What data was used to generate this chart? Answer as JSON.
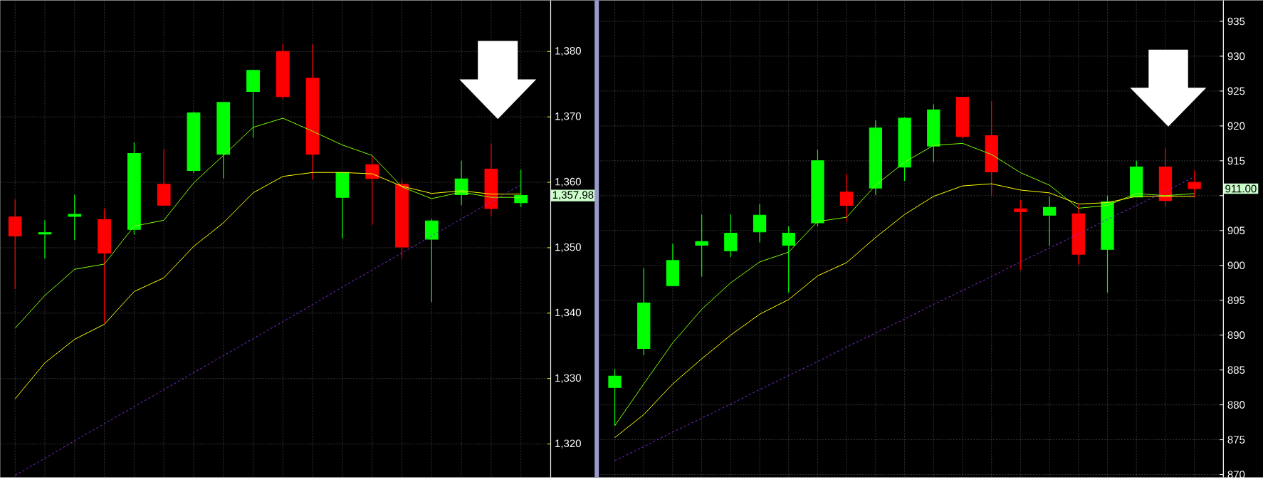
{
  "chart_data": [
    {
      "type": "candlestick",
      "categories": [
        null,
        null,
        null,
        null,
        null,
        null,
        null,
        null,
        null,
        null,
        null,
        null,
        null,
        null,
        null,
        null,
        null,
        null
      ],
      "ohlc": [
        [
          1354.7,
          1357.4,
          1343.7,
          1351.8
        ],
        [
          1352.1,
          1354.2,
          1348.3,
          1352.3
        ],
        [
          1354.8,
          1358.1,
          1351.2,
          1355.1
        ],
        [
          1354.3,
          1356.0,
          1338.5,
          1349.2
        ],
        [
          1352.8,
          1366.1,
          1352.0,
          1364.4
        ],
        [
          1359.7,
          1365.0,
          1356.5,
          1356.5
        ],
        [
          1361.8,
          1370.8,
          1361.4,
          1370.6
        ],
        [
          1364.3,
          1372.2,
          1360.6,
          1372.2
        ],
        [
          1373.9,
          1377.2,
          1366.8,
          1377.1
        ],
        [
          1380.0,
          1381.2,
          1372.7,
          1373.1
        ],
        [
          1375.9,
          1381.1,
          1360.4,
          1364.3
        ],
        [
          1357.7,
          1361.5,
          1351.4,
          1361.5
        ],
        [
          1362.7,
          1364.0,
          1353.5,
          1360.6
        ],
        [
          1359.7,
          1360.5,
          1348.3,
          1350.1
        ],
        [
          1351.3,
          1354.4,
          1341.7,
          1354.1
        ],
        [
          1358.1,
          1363.3,
          1356.5,
          1360.5
        ],
        [
          1362.0,
          1365.9,
          1354.8,
          1356.0
        ],
        [
          1356.9,
          1361.9,
          1356.2,
          1357.98
        ]
      ],
      "colors": [
        "#ff0000",
        "#00ff00",
        "#00ff00",
        "#ff0000",
        "#00ff00",
        "#ff0000",
        "#00ff00",
        "#00ff00",
        "#00ff00",
        "#ff0000",
        "#ff0000",
        "#00ff00",
        "#ff0000",
        "#ff0000",
        "#00ff00",
        "#00ff00",
        "#ff0000",
        "#00ff00"
      ],
      "series": [
        {
          "type": "line",
          "color": "#80ff00",
          "values": [
            1337.7,
            1342.7,
            1346.7,
            1347.5,
            1353.3,
            1354.2,
            1359.9,
            1364.1,
            1368.4,
            1369.8,
            1367.8,
            1365.7,
            1364.1,
            1359.3,
            1357.5,
            1358.5,
            1357.7,
            1357.7
          ]
        },
        {
          "type": "line",
          "color": "#ffff00",
          "values": [
            1326.9,
            1332.4,
            1336.0,
            1338.3,
            1343.3,
            1345.4,
            1350.2,
            1353.8,
            1358.4,
            1360.9,
            1361.5,
            1361.5,
            1361.3,
            1359.4,
            1358.3,
            1358.7,
            1358.2,
            1358.2
          ]
        },
        {
          "type": "line",
          "color": "#8a2be2",
          "line_style": "dashed",
          "values": [
            1315.2,
            1317.8,
            1320.5,
            1323.1,
            1325.7,
            1328.3,
            1330.9,
            1333.5,
            1336.1,
            1338.7,
            1341.3,
            1344.0,
            1346.6,
            1349.2,
            1351.8,
            1354.4,
            1357.0,
            1359.6
          ]
        }
      ],
      "ylim": [
        1314.9,
        1387.8
      ],
      "yticks": [
        {
          "value": 1320,
          "label": "1,320"
        },
        {
          "value": 1330,
          "label": "1,330"
        },
        {
          "value": 1340,
          "label": "1,340"
        },
        {
          "value": 1350,
          "label": "1,350"
        },
        {
          "value": 1360,
          "label": "1,360"
        },
        {
          "value": 1370,
          "label": "1,370"
        },
        {
          "value": 1380,
          "label": "1,380"
        }
      ],
      "grid": true,
      "tick_labels": "y",
      "annotations": [
        "1,357.98"
      ]
    },
    {
      "type": "candlestick",
      "categories": [
        null,
        null,
        null,
        null,
        null,
        null,
        null,
        null,
        null,
        null,
        null,
        null,
        null,
        null,
        null,
        null,
        null,
        null,
        null,
        null,
        null
      ],
      "ohlc": [
        [
          882.5,
          885.1,
          877.0,
          884.1
        ],
        [
          888.1,
          899.6,
          887.1,
          894.6
        ],
        [
          897.1,
          903.1,
          897.1,
          900.7
        ],
        [
          902.9,
          907.3,
          898.4,
          903.4
        ],
        [
          902.1,
          907.3,
          901.2,
          904.6
        ],
        [
          904.8,
          908.8,
          903.3,
          907.2
        ],
        [
          902.9,
          905.6,
          896.1,
          904.6
        ],
        [
          906.1,
          916.6,
          905.6,
          915.0
        ],
        [
          910.5,
          913.1,
          906.3,
          908.6
        ],
        [
          911.1,
          920.8,
          910.1,
          919.7
        ],
        [
          914.1,
          921.3,
          912.1,
          921.1
        ],
        [
          917.1,
          923.1,
          914.8,
          922.3
        ],
        [
          924.1,
          924.1,
          918.2,
          918.5
        ],
        [
          918.6,
          923.5,
          910.0,
          913.4
        ],
        [
          908.1,
          909.4,
          899.3,
          907.7
        ],
        [
          907.2,
          909.9,
          902.8,
          908.3
        ],
        [
          907.4,
          908.7,
          900.1,
          901.6
        ],
        [
          902.3,
          910.0,
          896.1,
          909.1
        ],
        [
          909.8,
          915.0,
          909.8,
          914.1
        ],
        [
          914.1,
          916.8,
          908.4,
          909.3
        ],
        [
          911.9,
          913.6,
          909.7,
          911.0
        ]
      ],
      "colors": [
        "#00ff00",
        "#00ff00",
        "#00ff00",
        "#00ff00",
        "#00ff00",
        "#00ff00",
        "#00ff00",
        "#00ff00",
        "#ff0000",
        "#00ff00",
        "#00ff00",
        "#00ff00",
        "#ff0000",
        "#ff0000",
        "#ff0000",
        "#00ff00",
        "#ff0000",
        "#00ff00",
        "#00ff00",
        "#ff0000",
        "#ff0000"
      ],
      "series": [
        {
          "type": "line",
          "color": "#80ff00",
          "values": [
            877.0,
            883.0,
            888.9,
            893.7,
            897.5,
            900.5,
            901.9,
            906.3,
            906.9,
            911.5,
            914.8,
            917.2,
            917.5,
            915.9,
            913.3,
            911.5,
            908.2,
            908.6,
            910.3,
            910.0,
            910.3
          ]
        },
        {
          "type": "line",
          "color": "#ffff00",
          "values": [
            875.3,
            878.6,
            883.0,
            886.6,
            890.0,
            893.0,
            895.1,
            898.5,
            900.4,
            904.0,
            907.3,
            909.9,
            911.4,
            911.7,
            910.8,
            910.4,
            908.8,
            909.0,
            909.9,
            909.9,
            909.9
          ]
        },
        {
          "type": "line",
          "color": "#8a2be2",
          "line_style": "dashed",
          "values": [
            872.0,
            874.0,
            876.1,
            878.1,
            880.1,
            882.2,
            884.2,
            886.2,
            888.3,
            890.3,
            892.3,
            894.4,
            896.4,
            898.4,
            900.5,
            902.5,
            904.5,
            906.6,
            908.6,
            910.6,
            912.7
          ]
        }
      ],
      "ylim": [
        869.6,
        938.0
      ],
      "yticks": [
        870,
        875,
        880,
        885,
        890,
        895,
        900,
        905,
        {
          "value": 910,
          "label": null
        },
        915,
        920,
        925,
        930,
        935
      ],
      "grid": true,
      "tick_labels": "y",
      "annotations": [
        "911.00"
      ]
    }
  ]
}
